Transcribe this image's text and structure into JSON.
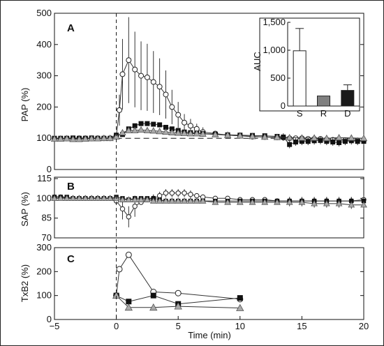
{
  "chart_data": [
    {
      "panel_label": "A",
      "type": "line",
      "ylabel": "PAP (%)",
      "ylim": [
        0,
        500
      ],
      "yticks": [
        "0",
        "100",
        "200",
        "300",
        "400",
        "500"
      ],
      "series": [
        {
          "marker": "open-circle",
          "x": [
            -5,
            -4.5,
            -4,
            -3.5,
            -3,
            -2.5,
            -2,
            -1.5,
            -1,
            -0.5,
            0,
            0.25,
            0.5,
            1,
            1.5,
            2,
            2.5,
            3,
            3.5,
            4,
            4.5,
            5,
            5.5,
            6,
            6.5,
            7,
            8,
            9,
            10,
            11,
            12,
            13,
            13.5,
            14,
            14.5,
            15,
            15.5,
            16,
            16.5,
            17,
            17.5,
            18,
            18.5,
            19,
            19.5,
            20
          ],
          "y": [
            98,
            98,
            99,
            99,
            100,
            100,
            99,
            100,
            100,
            100,
            108,
            190,
            305,
            350,
            320,
            300,
            295,
            280,
            265,
            240,
            200,
            175,
            150,
            140,
            130,
            120,
            115,
            110,
            108,
            105,
            104,
            103,
            102,
            100,
            100,
            100,
            98,
            98,
            98,
            96,
            95,
            95,
            94,
            94,
            93,
            92
          ]
        },
        {
          "marker": "filled-square",
          "x": [
            -5,
            -4.5,
            -4,
            -3.5,
            -3,
            -2.5,
            -2,
            -1.5,
            -1,
            -0.5,
            0,
            0.5,
            1,
            1.5,
            2,
            2.5,
            3,
            3.5,
            4,
            4.5,
            5,
            5.5,
            6,
            6.5,
            7,
            8,
            9,
            10,
            11,
            12,
            13,
            13.5,
            14,
            14.5,
            15,
            15.5,
            16,
            16.5,
            17,
            17.5,
            18,
            18.5,
            19,
            19.5,
            20
          ],
          "y": [
            100,
            100,
            100,
            101,
            100,
            100,
            101,
            100,
            100,
            100,
            110,
            112,
            130,
            140,
            147,
            147,
            145,
            143,
            135,
            130,
            125,
            120,
            118,
            116,
            115,
            113,
            111,
            110,
            109,
            108,
            106,
            104,
            80,
            88,
            90,
            90,
            92,
            93,
            90,
            88,
            86,
            90,
            92,
            90,
            90
          ]
        },
        {
          "marker": "open-triangle",
          "x": [
            -5,
            -4.5,
            -4,
            -3.5,
            -3,
            -2.5,
            -2,
            -1.5,
            -1,
            -0.5,
            0,
            0.5,
            1,
            1.5,
            2,
            2.5,
            3,
            3.5,
            4,
            4.5,
            5,
            5.5,
            6,
            6.5,
            7,
            8,
            9,
            10,
            11,
            12,
            13,
            14,
            15,
            16,
            17,
            18,
            19,
            20
          ],
          "y": [
            98,
            98,
            99,
            97,
            97,
            98,
            99,
            99,
            100,
            100,
            105,
            118,
            125,
            125,
            127,
            125,
            124,
            122,
            120,
            118,
            117,
            116,
            115,
            115,
            114,
            112,
            110,
            108,
            106,
            104,
            103,
            102,
            101,
            101,
            100,
            102,
            101,
            100
          ]
        }
      ],
      "reference_line": 100
    },
    {
      "panel_label": "inset",
      "type": "bar",
      "ylabel": "AUC",
      "categories": [
        "S",
        "R",
        "D"
      ],
      "values": [
        990,
        180,
        280
      ],
      "errors": [
        400,
        0,
        100
      ],
      "colors": [
        "#ffffff",
        "#808080",
        "#1a1a1a"
      ],
      "ylim": [
        0,
        1500
      ],
      "yticks": [
        "0",
        "500",
        "1,000",
        "1,500"
      ]
    },
    {
      "panel_label": "B",
      "type": "line",
      "ylabel": "SAP (%)",
      "ylim": [
        70,
        115
      ],
      "yticks": [
        "70",
        "85",
        "100",
        "115"
      ],
      "series": [
        {
          "marker": "open-circle",
          "x": [
            -5,
            -4.5,
            -4,
            -3.5,
            -3,
            -2.5,
            -2,
            -1.5,
            -1,
            -0.5,
            0,
            0.5,
            1,
            1.5,
            2,
            2.5,
            3,
            3.5,
            4,
            4.5,
            5,
            5.5,
            6,
            6.5,
            7,
            8,
            9,
            10,
            11,
            12,
            13,
            14,
            15,
            16,
            17,
            18,
            19,
            20
          ],
          "y": [
            101,
            101,
            100,
            100,
            100,
            100,
            100,
            100,
            100,
            100,
            98,
            92,
            86,
            94,
            97,
            99,
            100,
            102,
            104,
            104,
            104,
            104,
            103,
            102,
            101,
            100,
            100,
            99,
            99,
            99,
            98,
            98,
            98,
            98,
            98,
            98,
            98,
            99
          ]
        },
        {
          "marker": "filled-square",
          "x": [
            -5,
            -4.5,
            -4,
            -3.5,
            -3,
            -2.5,
            -2,
            -1.5,
            -1,
            -0.5,
            0,
            0.5,
            1,
            1.5,
            2,
            2.5,
            3,
            3.5,
            4,
            4.5,
            5,
            5.5,
            6,
            6.5,
            7,
            8,
            9,
            10,
            11,
            12,
            13,
            14,
            15,
            16,
            17,
            18,
            19,
            20
          ],
          "y": [
            101,
            101,
            101,
            100,
            100,
            100,
            100,
            100,
            100,
            100,
            101,
            100,
            99,
            100,
            100,
            100,
            100,
            99,
            98,
            98,
            98,
            98,
            98,
            98,
            98,
            98,
            98,
            98,
            98,
            98,
            98,
            98,
            98,
            98,
            98,
            98,
            98,
            98
          ]
        },
        {
          "marker": "open-triangle",
          "x": [
            -5,
            -4.5,
            -4,
            -3.5,
            -3,
            -2.5,
            -2,
            -1.5,
            -1,
            -0.5,
            0,
            0.5,
            1,
            1.5,
            2,
            2.5,
            3,
            3.5,
            4,
            4.5,
            5,
            5.5,
            6,
            6.5,
            7,
            8,
            9,
            10,
            11,
            12,
            13,
            14,
            15,
            16,
            17,
            18,
            19,
            20
          ],
          "y": [
            100,
            100,
            100,
            100,
            100,
            100,
            100,
            100,
            100,
            100,
            100,
            99,
            99,
            99,
            99,
            99,
            98,
            98,
            98,
            98,
            98,
            98,
            98,
            98,
            98,
            97,
            97,
            97,
            97,
            97,
            97,
            97,
            97,
            96,
            96,
            96,
            95,
            95
          ]
        }
      ]
    },
    {
      "panel_label": "C",
      "type": "line",
      "ylabel": "TxB2 (%)",
      "xlabel": "Time (min)",
      "ylim": [
        0,
        300
      ],
      "xlim": [
        -5,
        20
      ],
      "yticks": [
        "0",
        "100",
        "200",
        "300"
      ],
      "xticks": [
        "−5",
        "0",
        "5",
        "10",
        "15",
        "20"
      ],
      "series": [
        {
          "marker": "open-circle",
          "x": [
            0,
            0.25,
            1,
            3,
            5,
            10
          ],
          "y": [
            100,
            210,
            270,
            115,
            110,
            85
          ]
        },
        {
          "marker": "filled-square",
          "x": [
            0,
            1,
            3,
            5,
            10
          ],
          "y": [
            100,
            75,
            100,
            65,
            90
          ]
        },
        {
          "marker": "open-triangle",
          "x": [
            0,
            1,
            3,
            5,
            10
          ],
          "y": [
            100,
            50,
            50,
            55,
            48
          ]
        }
      ]
    }
  ]
}
